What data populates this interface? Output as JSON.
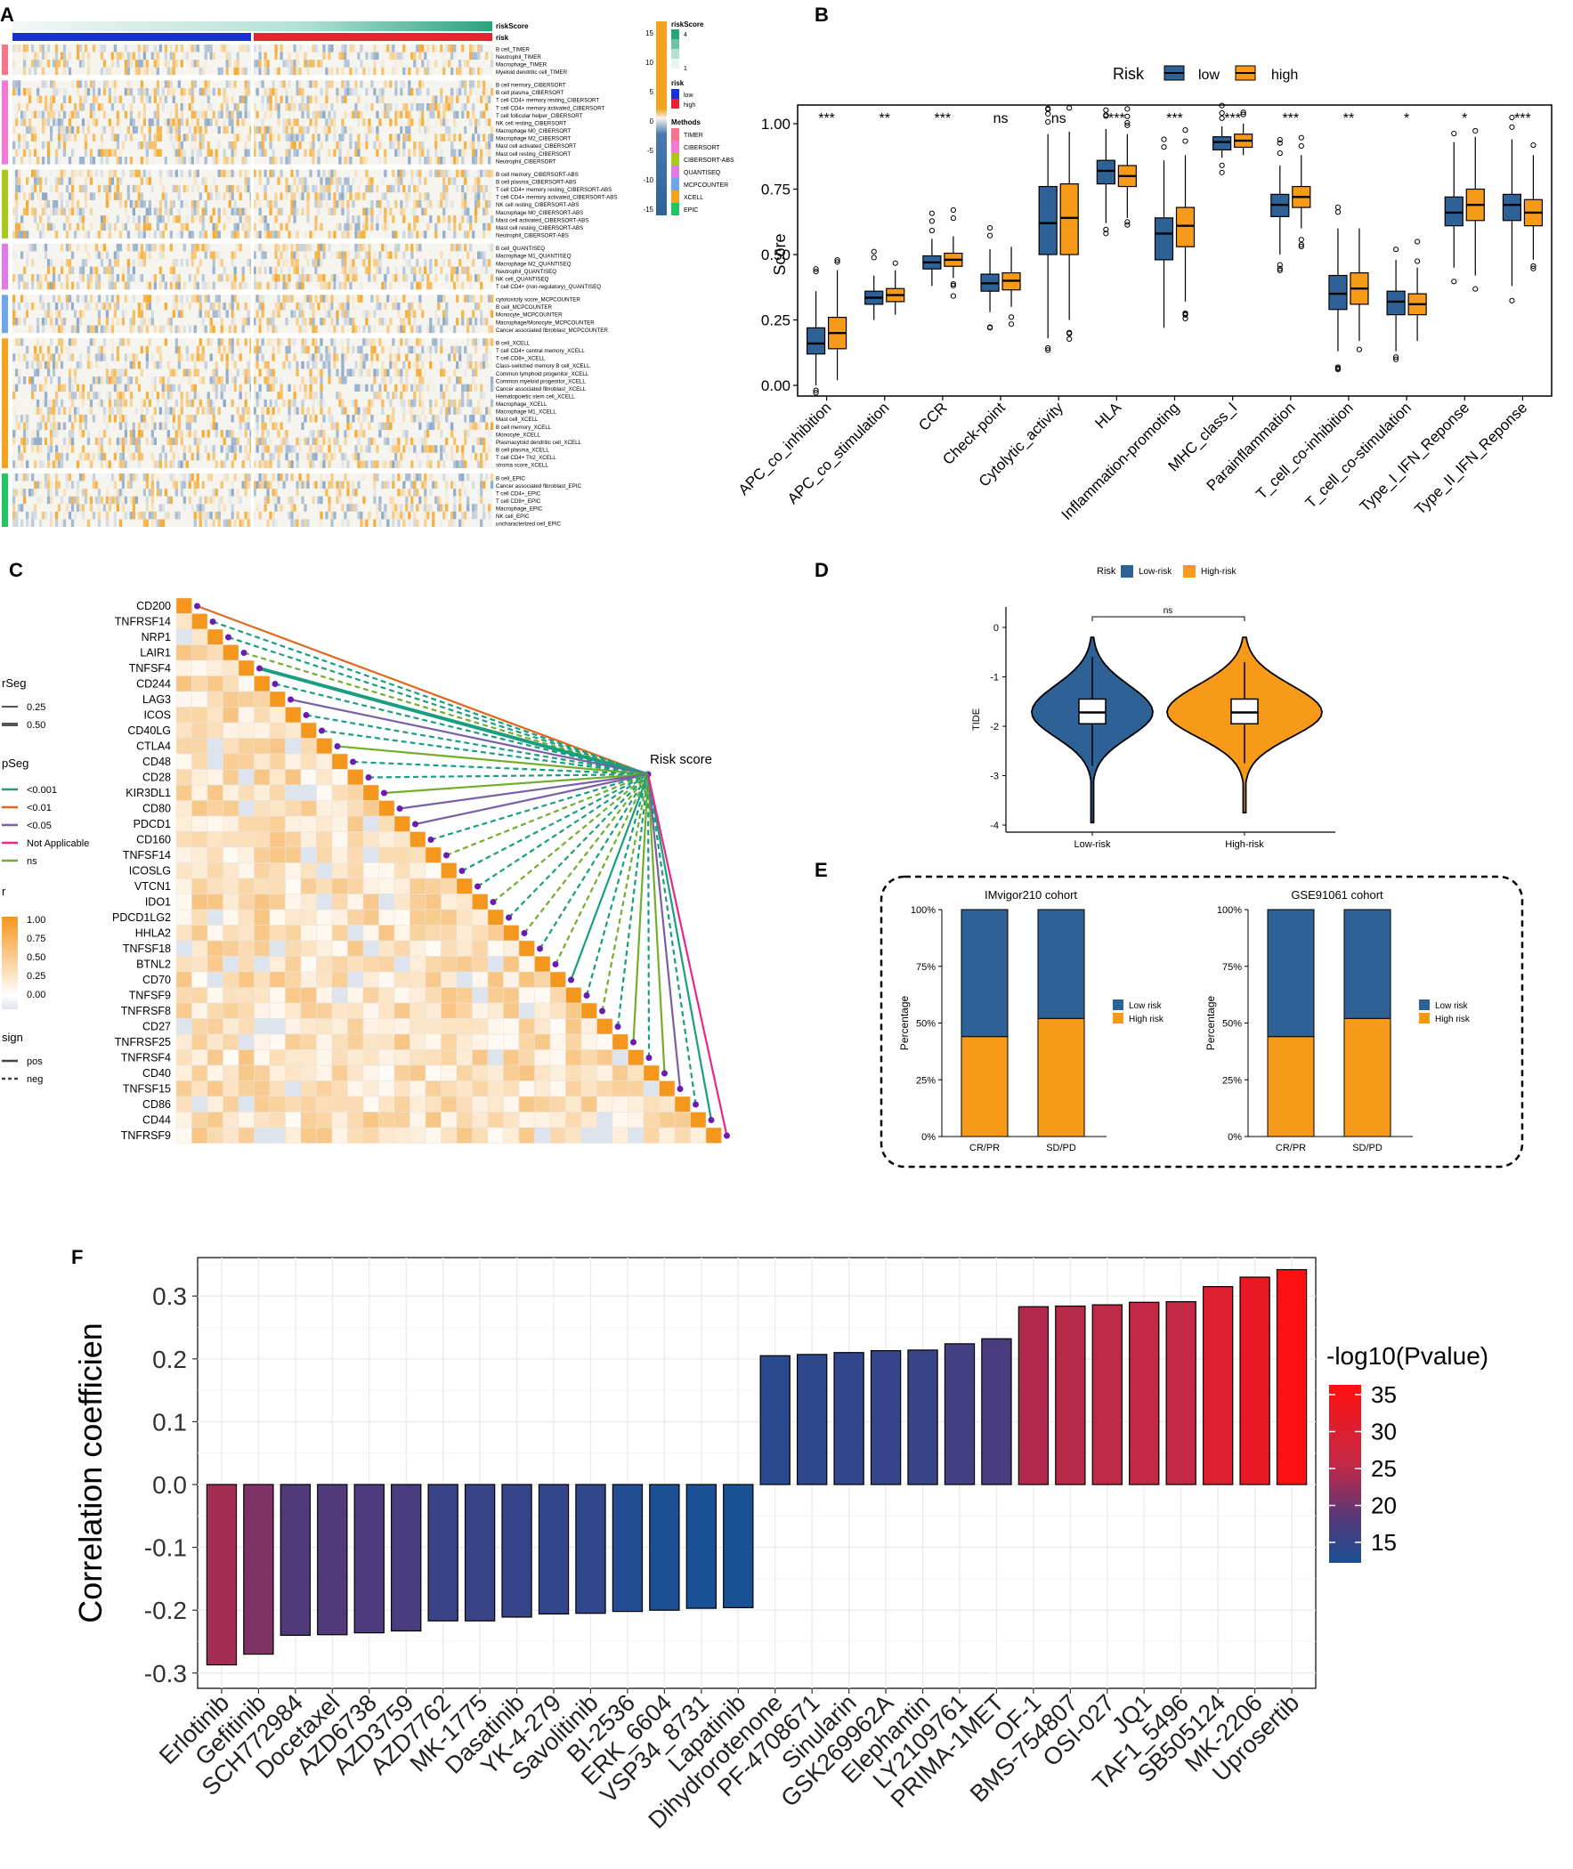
{
  "panel_letters": [
    "A",
    "B",
    "C",
    "D",
    "E",
    "F"
  ],
  "colors": {
    "low": "#2e6296",
    "high": "#f79a1a",
    "teal": "#1a9e80",
    "green_ns": "#72ad2c",
    "purple": "#7a5fa6",
    "orange_line": "#e0671c",
    "pink": "#e8278a"
  },
  "chart_data": [
    {
      "panel": "A",
      "type": "heatmap",
      "annotation_bars": [
        "riskScore",
        "risk"
      ],
      "legend": {
        "scale_ticks": [
          "15",
          "10",
          "5",
          "0",
          "-5",
          "-10",
          "-15"
        ],
        "riskScore_title": "riskScore",
        "riskScore_ticks": [
          "4",
          "1"
        ],
        "risk_title": "risk",
        "risk_levels": [
          "low",
          "high"
        ],
        "methods_title": "Methods",
        "methods": [
          "TIMER",
          "CIBERSORT",
          "CIBERSORT-ABS",
          "QUANTISEQ",
          "MCPCOUNTER",
          "XCELL",
          "EPIC"
        ],
        "method_colors": [
          "#f4758a",
          "#f07ad6",
          "#a8c81a",
          "#e07ae8",
          "#6ea6e8",
          "#f5a21d",
          "#22c464"
        ]
      },
      "groups": [
        {
          "method": "TIMER",
          "rows": [
            "B cell_TIMER",
            "Neutrophil_TIMER",
            "Macrophage_TIMER",
            "Myeloid dendritic cell_TIMER"
          ]
        },
        {
          "method": "CIBERSORT",
          "rows": [
            "B cell memory_CIBERSORT",
            "B cell plasma_CIBERSORT",
            "T cell CD4+ memory resting_CIBERSORT",
            "T cell CD4+ memory activated_CIBERSORT",
            "T cell follicular helper_CIBERSORT",
            "NK cell resting_CIBERSORT",
            "Macrophage M0_CIBERSORT",
            "Macrophage M2_CIBERSORT",
            "Mast cell activated_CIBERSORT",
            "Mast cell resting_CIBERSORT",
            "Neutrophil_CIBERSORT"
          ]
        },
        {
          "method": "CIBERSORT-ABS",
          "rows": [
            "B cell memory_CIBERSORT-ABS",
            "B cell plasma_CIBERSORT-ABS",
            "T cell CD4+ memory resting_CIBERSORT-ABS",
            "T cell CD4+ memory activated_CIBERSORT-ABS",
            "NK cell resting_CIBERSORT-ABS",
            "Macrophage M0_CIBERSORT-ABS",
            "Mast cell activated_CIBERSORT-ABS",
            "Mast cell resting_CIBERSORT-ABS",
            "Neutrophil_CIBERSORT-ABS"
          ]
        },
        {
          "method": "QUANTISEQ",
          "rows": [
            "B cell_QUANTISEQ",
            "Macrophage M1_QUANTISEQ",
            "Macrophage M2_QUANTISEQ",
            "Neutrophil_QUANTISEQ",
            "NK cell_QUANTISEQ",
            "T cell CD4+ (non-regulatory)_QUANTISEQ"
          ]
        },
        {
          "method": "MCPCOUNTER",
          "rows": [
            "cytotoxicity score_MCPCOUNTER",
            "B cell_MCPCOUNTER",
            "Monocyte_MCPCOUNTER",
            "Macrophage/Monocyte_MCPCOUNTER",
            "Cancer associated fibroblast_MCPCOUNTER"
          ]
        },
        {
          "method": "XCELL",
          "rows": [
            "B cell_XCELL",
            "T cell CD4+ central memory_XCELL",
            "T cell CD8+_XCELL",
            "Class-switched memory B cell_XCELL",
            "Common lymphoid progenitor_XCELL",
            "Common myeloid progenitor_XCELL",
            "Cancer associated fibroblast_XCELL",
            "Hematopoietic stem cell_XCELL",
            "Macrophage_XCELL",
            "Macrophage M1_XCELL",
            "Mast cell_XCELL",
            "B cell memory_XCELL",
            "Monocyte_XCELL",
            "Plasmacytoid dendritic cell_XCELL",
            "B cell plasma_XCELL",
            "T cell CD4+ Th2_XCELL",
            "stroma score_XCELL"
          ]
        },
        {
          "method": "EPIC",
          "rows": [
            "B cell_EPIC",
            "Cancer associated fibroblast_EPIC",
            "T cell CD4+_EPIC",
            "T cell CD8+_EPIC",
            "Macrophage_EPIC",
            "NK cell_EPIC",
            "uncharacterized cell_EPIC"
          ]
        }
      ]
    },
    {
      "panel": "B",
      "type": "boxplot",
      "ylabel": "Score",
      "ylim": [
        0,
        1.05
      ],
      "yticks": [
        "0.00",
        "0.25",
        "0.50",
        "0.75",
        "1.00"
      ],
      "legend_title": "Risk",
      "legend_items": [
        "low",
        "high"
      ],
      "categories": [
        "APC_co_inhibition",
        "APC_co_stimulation",
        "CCR",
        "Check-point",
        "Cytolytic_activity",
        "HLA",
        "Inflammation-promoting",
        "MHC_class_I",
        "Parainflammation",
        "T_cell_co-inhibition",
        "T_cell_co-stimulation",
        "Type_I_IFN_Reponse",
        "Type_II_IFN_Reponse"
      ],
      "significance": [
        "***",
        "**",
        "***",
        "ns",
        "ns",
        "***",
        "***",
        "***",
        "***",
        "**",
        "*",
        "*",
        "***"
      ],
      "series": [
        {
          "name": "low",
          "stats": [
            [
              0.0,
              0.12,
              0.16,
              0.22,
              0.36
            ],
            [
              0.25,
              0.31,
              0.335,
              0.36,
              0.42
            ],
            [
              0.38,
              0.445,
              0.47,
              0.495,
              0.56
            ],
            [
              0.28,
              0.36,
              0.39,
              0.425,
              0.52
            ],
            [
              0.18,
              0.5,
              0.62,
              0.76,
              0.96
            ],
            [
              0.62,
              0.77,
              0.82,
              0.86,
              0.98
            ],
            [
              0.22,
              0.48,
              0.58,
              0.64,
              0.86
            ],
            [
              0.87,
              0.9,
              0.93,
              0.95,
              0.99
            ],
            [
              0.5,
              0.645,
              0.69,
              0.73,
              0.84
            ],
            [
              0.13,
              0.29,
              0.35,
              0.42,
              0.6
            ],
            [
              0.13,
              0.27,
              0.32,
              0.36,
              0.48
            ],
            [
              0.45,
              0.61,
              0.66,
              0.72,
              0.93
            ],
            [
              0.38,
              0.63,
              0.69,
              0.73,
              0.94
            ]
          ]
        },
        {
          "name": "high",
          "stats": [
            [
              0.02,
              0.14,
              0.2,
              0.26,
              0.44
            ],
            [
              0.27,
              0.32,
              0.345,
              0.37,
              0.44
            ],
            [
              0.41,
              0.455,
              0.48,
              0.505,
              0.57
            ],
            [
              0.3,
              0.365,
              0.4,
              0.43,
              0.53
            ],
            [
              0.25,
              0.5,
              0.64,
              0.77,
              0.97
            ],
            [
              0.64,
              0.76,
              0.8,
              0.84,
              0.96
            ],
            [
              0.32,
              0.53,
              0.61,
              0.68,
              0.88
            ],
            [
              0.88,
              0.91,
              0.935,
              0.96,
              1.0
            ],
            [
              0.6,
              0.68,
              0.72,
              0.76,
              0.88
            ],
            [
              0.17,
              0.31,
              0.37,
              0.43,
              0.6
            ],
            [
              0.17,
              0.27,
              0.31,
              0.35,
              0.45
            ],
            [
              0.42,
              0.63,
              0.69,
              0.75,
              0.95
            ],
            [
              0.48,
              0.61,
              0.66,
              0.71,
              0.88
            ]
          ]
        }
      ]
    },
    {
      "panel": "C",
      "type": "correlation-triangle",
      "genes": [
        "CD200",
        "TNFRSF14",
        "NRP1",
        "LAIR1",
        "TNFSF4",
        "CD244",
        "LAG3",
        "ICOS",
        "CD40LG",
        "CTLA4",
        "CD48",
        "CD28",
        "KIR3DL1",
        "CD80",
        "PDCD1",
        "CD160",
        "TNFSF14",
        "ICOSLG",
        "VTCN1",
        "IDO1",
        "PDCD1LG2",
        "HHLA2",
        "TNFSF18",
        "BTNL2",
        "CD70",
        "TNFSF9",
        "TNFRSF8",
        "CD27",
        "TNFRSF25",
        "TNFRSF4",
        "CD40",
        "TNFSF15",
        "CD86",
        "CD44",
        "TNFRSF9"
      ],
      "target_label": "Risk score",
      "links": [
        {
          "p": "<0.01",
          "sign": "pos",
          "width": 0.25
        },
        {
          "p": "<0.001",
          "sign": "neg",
          "width": 0.25
        },
        {
          "p": "<0.001",
          "sign": "neg",
          "width": 0.25
        },
        {
          "p": "ns",
          "sign": "neg",
          "width": 0.25
        },
        {
          "p": "<0.001",
          "sign": "pos",
          "width": 0.5
        },
        {
          "p": "<0.001",
          "sign": "neg",
          "width": 0.25
        },
        {
          "p": "<0.05",
          "sign": "pos",
          "width": 0.25
        },
        {
          "p": "<0.001",
          "sign": "neg",
          "width": 0.25
        },
        {
          "p": "<0.001",
          "sign": "neg",
          "width": 0.25
        },
        {
          "p": "ns",
          "sign": "pos",
          "width": 0.25
        },
        {
          "p": "<0.001",
          "sign": "neg",
          "width": 0.25
        },
        {
          "p": "<0.001",
          "sign": "neg",
          "width": 0.25
        },
        {
          "p": "ns",
          "sign": "pos",
          "width": 0.25
        },
        {
          "p": "<0.05",
          "sign": "pos",
          "width": 0.25
        },
        {
          "p": "<0.05",
          "sign": "pos",
          "width": 0.25
        },
        {
          "p": "<0.001",
          "sign": "neg",
          "width": 0.25
        },
        {
          "p": "ns",
          "sign": "neg",
          "width": 0.25
        },
        {
          "p": "<0.001",
          "sign": "neg",
          "width": 0.25
        },
        {
          "p": "<0.001",
          "sign": "neg",
          "width": 0.25
        },
        {
          "p": "ns",
          "sign": "neg",
          "width": 0.25
        },
        {
          "p": "<0.001",
          "sign": "neg",
          "width": 0.25
        },
        {
          "p": "ns",
          "sign": "neg",
          "width": 0.25
        },
        {
          "p": "<0.001",
          "sign": "neg",
          "width": 0.25
        },
        {
          "p": "ns",
          "sign": "neg",
          "width": 0.25
        },
        {
          "p": "<0.001",
          "sign": "pos",
          "width": 0.25
        },
        {
          "p": "<0.001",
          "sign": "neg",
          "width": 0.25
        },
        {
          "p": "ns",
          "sign": "neg",
          "width": 0.25
        },
        {
          "p": "<0.001",
          "sign": "neg",
          "width": 0.25
        },
        {
          "p": "ns",
          "sign": "pos",
          "width": 0.25
        },
        {
          "p": "<0.001",
          "sign": "neg",
          "width": 0.25
        },
        {
          "p": "ns",
          "sign": "pos",
          "width": 0.25
        },
        {
          "p": "<0.05",
          "sign": "pos",
          "width": 0.25
        },
        {
          "p": "<0.001",
          "sign": "neg",
          "width": 0.25
        },
        {
          "p": "<0.001",
          "sign": "pos",
          "width": 0.25
        },
        {
          "p": "Not Applicable",
          "sign": "pos",
          "width": 0.25
        }
      ],
      "legend": {
        "rseg_title": "rSeg",
        "rseg_items": [
          "0.25",
          "0.50"
        ],
        "pseg_title": "pSeg",
        "pseg_items": [
          "<0.001",
          "<0.01",
          "<0.05",
          "Not Applicable",
          "ns"
        ],
        "r_title": "r",
        "r_ticks": [
          "1.00",
          "0.75",
          "0.50",
          "0.25",
          "0.00"
        ],
        "sign_title": "sign",
        "sign_items": [
          "pos",
          "neg"
        ]
      }
    },
    {
      "panel": "D",
      "type": "violin",
      "legend_title": "Risk",
      "legend_items": [
        "Low-risk",
        "High-risk"
      ],
      "categories": [
        "Low-risk",
        "High-risk"
      ],
      "ylabel": "TIDE",
      "ylim": [
        -4,
        0.3
      ],
      "yticks": [
        "0",
        "-1",
        "-2",
        "-3",
        "-4"
      ],
      "significance": "ns",
      "box_stats": [
        [
          -2.8,
          -1.95,
          -1.72,
          -1.45,
          -0.6
        ],
        [
          -2.75,
          -1.95,
          -1.72,
          -1.45,
          -0.7
        ]
      ]
    },
    {
      "panel": "E",
      "type": "stacked-bar",
      "cohorts": [
        {
          "title": "IMvigor210 cohort",
          "categories": [
            "CR/PR",
            "SD/PD"
          ],
          "high_risk_pct": [
            44,
            52
          ]
        },
        {
          "title": "GSE91061 cohort",
          "categories": [
            "CR/PR",
            "SD/PD"
          ],
          "high_risk_pct": [
            44,
            52
          ]
        }
      ],
      "ylabel": "Percentage",
      "yticks": [
        "0%",
        "25%",
        "50%",
        "75%",
        "100%"
      ],
      "legend_items": [
        "Low risk",
        "High risk"
      ]
    },
    {
      "panel": "F",
      "type": "bar",
      "ylabel": "Correlation coefficien",
      "ylim": [
        -0.3,
        0.35
      ],
      "yticks": [
        "-0.3",
        "-0.2",
        "-0.1",
        "0.0",
        "0.1",
        "0.2",
        "0.3"
      ],
      "legend_title": "-log10(Pvalue)",
      "legend_ticks": [
        "35",
        "30",
        "25",
        "20",
        "15"
      ],
      "categories": [
        "Erlotinib",
        "Gefitinib",
        "SCH772984",
        "Docetaxel",
        "AZD6738",
        "AZD3759",
        "AZD7762",
        "MK-1775",
        "Dasatinib",
        "YK-4-279",
        "Savolitinib",
        "BI-2536",
        "ERK_6604",
        "VSP34_8731",
        "Lapatinib",
        "Dihydrorotenone",
        "PF-4708671",
        "Sinularin",
        "GSK269962A",
        "Elephantin",
        "LY2109761",
        "PRIMA-1MET",
        "OF-1",
        "BMS-754807",
        "OSI-027",
        "JQ1",
        "TAF1_5496",
        "SB505124",
        "MK-2206",
        "Uprosertib"
      ],
      "values": [
        -0.287,
        -0.27,
        -0.24,
        -0.239,
        -0.236,
        -0.233,
        -0.217,
        -0.217,
        -0.211,
        -0.206,
        -0.205,
        -0.202,
        -0.2,
        -0.197,
        -0.196,
        0.205,
        0.207,
        0.21,
        0.213,
        0.214,
        0.224,
        0.232,
        0.283,
        0.284,
        0.286,
        0.29,
        0.291,
        0.315,
        0.33,
        0.342
      ],
      "neglog10p": [
        27,
        24,
        20,
        20,
        19.5,
        19,
        16.5,
        16.5,
        16,
        15.5,
        15.5,
        13,
        12.5,
        12,
        12,
        14.5,
        15,
        15.5,
        16,
        16.5,
        18,
        19,
        28,
        28.5,
        29,
        29.5,
        29.5,
        33,
        35,
        38
      ]
    }
  ]
}
